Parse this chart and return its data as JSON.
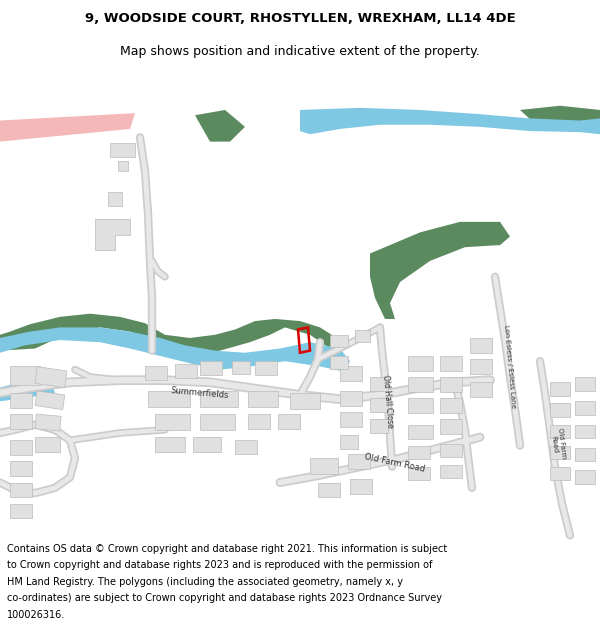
{
  "title_line1": "9, WOODSIDE COURT, RHOSTYLLEN, WREXHAM, LL14 4DE",
  "title_line2": "Map shows position and indicative extent of the property.",
  "footer_lines": [
    "Contains OS data © Crown copyright and database right 2021. This information is subject",
    "to Crown copyright and database rights 2023 and is reproduced with the permission of",
    "HM Land Registry. The polygons (including the associated geometry, namely x, y",
    "co-ordinates) are subject to Crown copyright and database rights 2023 Ordnance Survey",
    "100026316."
  ],
  "bg_color": "#ffffff",
  "map_bg": "#ffffff",
  "green_color": "#5a8a5e",
  "blue_color": "#7ec8e3",
  "pink_color": "#f5b8b8",
  "building_color": "#e0e0e0",
  "building_outline": "#bbbbbb",
  "road_fill": "#e8e8e8",
  "road_edge": "#cccccc",
  "property_outline": "#dd0000",
  "title_fontsize": 9.5,
  "subtitle_fontsize": 9,
  "footer_fontsize": 7,
  "label_fontsize": 6
}
